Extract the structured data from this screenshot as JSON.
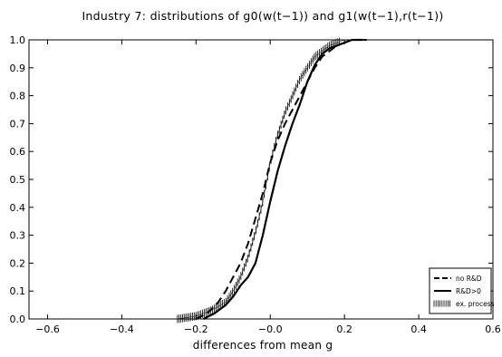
{
  "chart_data": {
    "type": "line",
    "title": "Industry 7: distributions of g0(w(t−1)) and g1(w(t−1),r(t−1))",
    "xlabel": "differences from mean g",
    "ylabel": "",
    "xlim": [
      -0.65,
      0.6
    ],
    "ylim": [
      0,
      1.0
    ],
    "xticks": [
      -0.6,
      -0.4,
      -0.2,
      0.0,
      0.2,
      0.4,
      0.6
    ],
    "xtick_labels": [
      "−0.6",
      "−0.4",
      "−0.2",
      "−0.0",
      "0.2",
      "0.4",
      "0.6"
    ],
    "yticks": [
      0,
      0.1,
      0.2,
      0.3,
      0.4,
      0.5,
      0.6,
      0.7,
      0.8,
      0.9,
      1.0
    ],
    "ytick_labels": [
      "0.0",
      "0.1",
      "0.2",
      "0.3",
      "0.4",
      "0.5",
      "0.6",
      "0.7",
      "0.8",
      "0.9",
      "1.0"
    ],
    "grid": false,
    "legend_position": "bottom-right",
    "series": [
      {
        "name": "no R&D",
        "style": "dashed",
        "x": [
          -0.2,
          -0.17,
          -0.14,
          -0.12,
          -0.1,
          -0.08,
          -0.06,
          -0.04,
          -0.02,
          0.0,
          0.02,
          0.04,
          0.06,
          0.08,
          0.1,
          0.12,
          0.14,
          0.16,
          0.18,
          0.2,
          0.22,
          0.24,
          0.26
        ],
        "y": [
          0.0,
          0.02,
          0.06,
          0.1,
          0.15,
          0.2,
          0.27,
          0.36,
          0.45,
          0.56,
          0.64,
          0.7,
          0.75,
          0.8,
          0.85,
          0.9,
          0.94,
          0.96,
          0.98,
          0.99,
          1.0,
          1.0,
          1.0
        ]
      },
      {
        "name": "R&D>0",
        "style": "solid",
        "x": [
          -0.18,
          -0.15,
          -0.12,
          -0.1,
          -0.08,
          -0.06,
          -0.04,
          -0.02,
          0.0,
          0.02,
          0.04,
          0.06,
          0.08,
          0.1,
          0.12,
          0.14,
          0.16,
          0.18,
          0.2,
          0.22,
          0.25
        ],
        "y": [
          0.0,
          0.02,
          0.05,
          0.08,
          0.12,
          0.15,
          0.2,
          0.3,
          0.42,
          0.53,
          0.62,
          0.7,
          0.77,
          0.85,
          0.91,
          0.95,
          0.97,
          0.98,
          0.99,
          1.0,
          1.0
        ]
      },
      {
        "name": "ex. process",
        "style": "vertical-hatch",
        "x": [
          -0.25,
          -0.2,
          -0.16,
          -0.12,
          -0.1,
          -0.08,
          -0.06,
          -0.04,
          -0.02,
          0.0,
          0.02,
          0.04,
          0.06,
          0.08,
          0.1,
          0.12,
          0.14,
          0.16,
          0.18,
          0.2,
          0.22,
          0.25
        ],
        "y": [
          0.0,
          0.01,
          0.03,
          0.06,
          0.1,
          0.15,
          0.22,
          0.31,
          0.42,
          0.56,
          0.66,
          0.74,
          0.8,
          0.86,
          0.9,
          0.94,
          0.96,
          0.98,
          0.99,
          1.0,
          1.0,
          1.0
        ]
      }
    ]
  }
}
